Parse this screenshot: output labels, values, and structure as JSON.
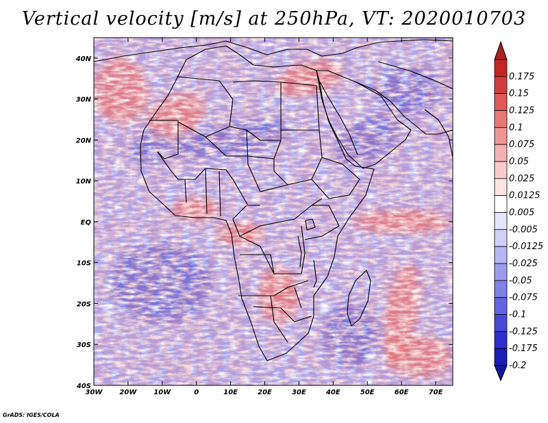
{
  "title": "Vertical velocity [m/s] at 250hPa, VT: 2020010703",
  "credit": "GrADS: IGES/COLA",
  "map": {
    "x_range": [
      -30,
      75
    ],
    "y_range": [
      -40,
      45
    ],
    "x_ticks": [
      {
        "value": -30,
        "label": "30W"
      },
      {
        "value": -20,
        "label": "20W"
      },
      {
        "value": -10,
        "label": "10W"
      },
      {
        "value": 0,
        "label": "0"
      },
      {
        "value": 10,
        "label": "10E"
      },
      {
        "value": 20,
        "label": "20E"
      },
      {
        "value": 30,
        "label": "30E"
      },
      {
        "value": 40,
        "label": "40E"
      },
      {
        "value": 50,
        "label": "50E"
      },
      {
        "value": 60,
        "label": "60E"
      },
      {
        "value": 70,
        "label": "70E"
      }
    ],
    "y_ticks": [
      {
        "value": 40,
        "label": "40N"
      },
      {
        "value": 30,
        "label": "30N"
      },
      {
        "value": 20,
        "label": "20N"
      },
      {
        "value": 10,
        "label": "10N"
      },
      {
        "value": 0,
        "label": "EQ"
      },
      {
        "value": -10,
        "label": "10S"
      },
      {
        "value": -20,
        "label": "20S"
      },
      {
        "value": -30,
        "label": "30S"
      },
      {
        "value": -40,
        "label": "40S"
      }
    ],
    "features": [
      {
        "name": "ascent-band-sahara",
        "sign": "up",
        "lon": -6,
        "lat": 26,
        "rlon": 9,
        "rlat": 5,
        "angle": -25
      },
      {
        "name": "ascent-band-mideast",
        "sign": "up",
        "lon": 33,
        "lat": 35,
        "rlon": 10,
        "rlat": 4,
        "angle": -15
      },
      {
        "name": "ascent-itcz-indian-ocean",
        "sign": "up",
        "lon": 60,
        "lat": 0,
        "rlon": 14,
        "rlat": 3,
        "angle": 0
      },
      {
        "name": "ascent-congo",
        "sign": "up",
        "lon": 13,
        "lat": -3,
        "rlon": 7,
        "rlat": 3,
        "angle": 0
      },
      {
        "name": "ascent-southern-africa",
        "sign": "up",
        "lon": 24,
        "lat": -18,
        "rlon": 6,
        "rlat": 7,
        "angle": 0
      },
      {
        "name": "ascent-madagascar-plume",
        "sign": "up",
        "lon": 60,
        "lat": -22,
        "rlon": 5,
        "rlat": 12,
        "angle": 10
      },
      {
        "name": "ascent-southeast-swirl",
        "sign": "up",
        "lon": 65,
        "lat": -33,
        "rlon": 10,
        "rlat": 5,
        "angle": 0
      },
      {
        "name": "ascent-north-atlantic",
        "sign": "up",
        "lon": -22,
        "lat": 32,
        "rlon": 8,
        "rlat": 8,
        "angle": 0
      },
      {
        "name": "ascent-gulf-guinea",
        "sign": "up",
        "lon": 0,
        "lat": 3,
        "rlon": 7,
        "rlat": 3,
        "angle": 0
      },
      {
        "name": "descent-sahel-band",
        "sign": "down",
        "lon": 10,
        "lat": 20,
        "rlon": 18,
        "rlat": 4,
        "angle": -10
      },
      {
        "name": "descent-arabian-sea",
        "sign": "down",
        "lon": 50,
        "lat": 20,
        "rlon": 10,
        "rlat": 5,
        "angle": -30
      },
      {
        "name": "descent-west-africa",
        "sign": "down",
        "lon": -14,
        "lat": 18,
        "rlon": 6,
        "rlat": 4,
        "angle": 0
      },
      {
        "name": "descent-south-atlantic",
        "sign": "down",
        "lon": -10,
        "lat": -15,
        "rlon": 15,
        "rlat": 10,
        "angle": 0
      },
      {
        "name": "descent-iran",
        "sign": "down",
        "lon": 62,
        "lat": 32,
        "rlon": 10,
        "rlat": 6,
        "angle": 0
      },
      {
        "name": "descent-south-indian-ocean",
        "sign": "down",
        "lon": 45,
        "lat": -28,
        "rlon": 8,
        "rlat": 8,
        "angle": 0
      }
    ]
  },
  "colorbar": {
    "levels": [
      {
        "label": "0.175",
        "color": "#c42424"
      },
      {
        "label": "0.15",
        "color": "#d33c3c"
      },
      {
        "label": "0.125",
        "color": "#df5a5a"
      },
      {
        "label": "0.1",
        "color": "#e77878"
      },
      {
        "label": "0.075",
        "color": "#ee9696"
      },
      {
        "label": "0.05",
        "color": "#f4b2b2"
      },
      {
        "label": "0.025",
        "color": "#f9cccc"
      },
      {
        "label": "0.0125",
        "color": "#fde4e4"
      },
      {
        "label": "0.005",
        "color": "#ffffff"
      },
      {
        "label": "-0.005",
        "color": "#e6e6fb"
      },
      {
        "label": "-0.0125",
        "color": "#cfcff8"
      },
      {
        "label": "-0.025",
        "color": "#b6b6f4"
      },
      {
        "label": "-0.05",
        "color": "#9c9cef"
      },
      {
        "label": "-0.075",
        "color": "#8080e9"
      },
      {
        "label": "-0.1",
        "color": "#6464e2"
      },
      {
        "label": "-0.125",
        "color": "#4848da"
      },
      {
        "label": "-0.175",
        "color": "#2e2ece"
      },
      {
        "label": "-0.2",
        "color": "#1c1cb6"
      }
    ],
    "top_cap_color": "#b21f1f",
    "bottom_cap_color": "#1616a8"
  }
}
